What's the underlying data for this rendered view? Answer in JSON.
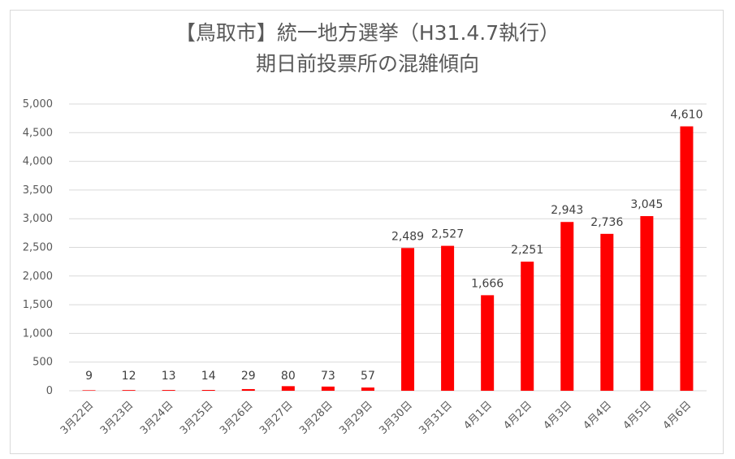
{
  "chart_data": {
    "type": "bar",
    "title_line1": "【鳥取市】統一地方選挙（H31.4.7執行）",
    "title_line2": "期日前投票所の混雑傾向",
    "categories": [
      "3月22日",
      "3月23日",
      "3月24日",
      "3月25日",
      "3月26日",
      "3月27日",
      "3月28日",
      "3月29日",
      "3月30日",
      "3月31日",
      "4月1日",
      "4月2日",
      "4月3日",
      "4月4日",
      "4月5日",
      "4月6日"
    ],
    "values": [
      9,
      12,
      13,
      14,
      29,
      80,
      73,
      57,
      2489,
      2527,
      1666,
      2251,
      2943,
      2736,
      3045,
      4610
    ],
    "value_labels": [
      "9",
      "12",
      "13",
      "14",
      "29",
      "80",
      "73",
      "57",
      "2,489",
      "2,527",
      "1,666",
      "2,251",
      "2,943",
      "2,736",
      "3,045",
      "4,610"
    ],
    "y_ticks": [
      "0",
      "500",
      "1,000",
      "1,500",
      "2,000",
      "2,500",
      "3,000",
      "3,500",
      "4,000",
      "4,500",
      "5,000"
    ],
    "ylim": [
      0,
      5000
    ],
    "y_step": 500,
    "grid": true,
    "bar_color": "#ff0000",
    "grid_color": "#d9d9d9"
  }
}
